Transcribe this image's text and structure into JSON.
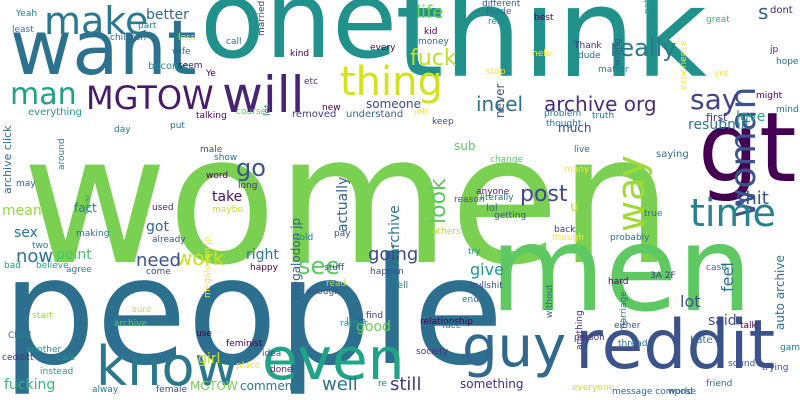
{
  "palette": {
    "dark_purple": "#440154",
    "indigo": "#414487",
    "blue": "#2a788e",
    "teal": "#22a884",
    "green": "#7ad151",
    "yellow": "#fde725",
    "background": "#ffffff"
  },
  "words": [
    {
      "text": "women",
      "color": "#7ad151"
    },
    {
      "text": "people",
      "color": "#2c6f8e"
    },
    {
      "text": "one",
      "color": "#21918c"
    },
    {
      "text": "think",
      "color": "#21918c"
    },
    {
      "text": "men",
      "color": "#5ec962"
    },
    {
      "text": "want",
      "color": "#2c728e"
    },
    {
      "text": "gt",
      "color": "#440154"
    },
    {
      "text": "reddit",
      "color": "#3b528b"
    },
    {
      "text": "guy",
      "color": "#31688e"
    },
    {
      "text": "even",
      "color": "#20a386"
    },
    {
      "text": "know",
      "color": "#2a788e"
    },
    {
      "text": "will",
      "color": "#482475"
    },
    {
      "text": "make",
      "color": "#2a788e"
    },
    {
      "text": "woman",
      "color": "#3b528b"
    },
    {
      "text": "time",
      "color": "#26828e"
    },
    {
      "text": "way",
      "color": "#a0da39"
    },
    {
      "text": "thing",
      "color": "#d2e21b"
    },
    {
      "text": "MGTOW",
      "color": "#481a6c"
    },
    {
      "text": "man",
      "color": "#1fa187"
    },
    {
      "text": "say",
      "color": "#414487"
    },
    {
      "text": "fuck",
      "color": "#bddf26"
    },
    {
      "text": "really",
      "color": "#2a788e"
    },
    {
      "text": "s",
      "color": "#355f8d"
    },
    {
      "text": "post",
      "color": "#3e4989"
    },
    {
      "text": "look",
      "color": "#5ec962"
    },
    {
      "text": "archive org",
      "color": "#472d7b"
    },
    {
      "text": "incel",
      "color": "#2c728e"
    },
    {
      "text": "life",
      "color": "#6ece58"
    },
    {
      "text": "become",
      "color": "#238a8d"
    },
    {
      "text": "better",
      "color": "#31688e"
    },
    {
      "text": "go",
      "color": "#3b528b"
    },
    {
      "text": "see",
      "color": "#5ec962"
    },
    {
      "text": "work",
      "color": "#c8e020"
    },
    {
      "text": "need",
      "color": "#3b528b"
    },
    {
      "text": "now",
      "color": "#2c728e"
    },
    {
      "text": "going",
      "color": "#3e4989"
    },
    {
      "text": "shit",
      "color": "#3b528b"
    },
    {
      "text": "still",
      "color": "#443983"
    },
    {
      "text": "well",
      "color": "#2c728e"
    },
    {
      "text": "comments",
      "color": "#2a788e"
    },
    {
      "text": "MGTOW",
      "color": "#7ad151"
    },
    {
      "text": "fucking",
      "color": "#35b779"
    },
    {
      "text": "something",
      "color": "#472d7b"
    },
    {
      "text": "good",
      "color": "#6ece58"
    },
    {
      "text": "megalodon jp",
      "color": "#355f8d"
    },
    {
      "text": "actually",
      "color": "#355f8d"
    },
    {
      "text": "web archive",
      "color": "#2a788e"
    },
    {
      "text": "feel",
      "color": "#2c728e"
    },
    {
      "text": "said",
      "color": "#3e4989"
    },
    {
      "text": "lot",
      "color": "#3b528b"
    },
    {
      "text": "give",
      "color": "#1f988b"
    },
    {
      "text": "love",
      "color": "#22a884"
    },
    {
      "text": "resubmit",
      "color": "#2a788e"
    },
    {
      "text": "auto archive",
      "color": "#2c728e"
    },
    {
      "text": "u",
      "color": "#bddf26"
    },
    {
      "text": "take",
      "color": "#471063"
    },
    {
      "text": "right",
      "color": "#2a788e"
    },
    {
      "text": "got",
      "color": "#31688e"
    },
    {
      "text": "sex",
      "color": "#2c728e"
    },
    {
      "text": "mean",
      "color": "#90d743"
    },
    {
      "text": "point",
      "color": "#4ac16d"
    },
    {
      "text": "girl",
      "color": "#c8e020"
    },
    {
      "text": "much",
      "color": "#3e4989"
    },
    {
      "text": "someone",
      "color": "#3e4989"
    },
    {
      "text": "never",
      "color": "#3b528b"
    },
    {
      "text": "fact",
      "color": "#2a788e"
    },
    {
      "text": "archive click",
      "color": "#31688e"
    },
    {
      "text": "everything",
      "color": "#1f988b"
    },
    {
      "text": "lol",
      "color": "#2c728e"
    },
    {
      "text": "removed",
      "color": "#443983"
    },
    {
      "text": "understand",
      "color": "#31688e"
    },
    {
      "text": "sub",
      "color": "#5ec962"
    },
    {
      "text": "saying",
      "color": "#2c728e"
    },
    {
      "text": "first",
      "color": "#46327e"
    },
    {
      "text": "hate",
      "color": "#2a788e"
    },
    {
      "text": "dont",
      "color": "#482475"
    },
    {
      "text": "etc",
      "color": "#472d7b"
    },
    {
      "text": "kind",
      "color": "#440154"
    },
    {
      "text": "Yeah",
      "color": "#26828e"
    },
    {
      "text": "least",
      "color": "#2a788e"
    },
    {
      "text": "made",
      "color": "#31688e"
    },
    {
      "text": "real",
      "color": "#26828e"
    },
    {
      "text": "best",
      "color": "#440154"
    },
    {
      "text": "great",
      "color": "#35b779"
    },
    {
      "text": "Thank",
      "color": "#482878"
    },
    {
      "text": "dude",
      "color": "#31688e"
    },
    {
      "text": "matter",
      "color": "#2a788e"
    },
    {
      "text": "money",
      "color": "#31688e"
    },
    {
      "text": "kid",
      "color": "#440154"
    },
    {
      "text": "Chad",
      "color": "#26828e"
    },
    {
      "text": "start",
      "color": "#9fda3a"
    },
    {
      "text": "another",
      "color": "#21918c"
    },
    {
      "text": "care",
      "color": "#1f988b"
    },
    {
      "text": "feminist",
      "color": "#440154"
    },
    {
      "text": "society",
      "color": "#46327e"
    },
    {
      "text": "idea",
      "color": "#3b528b"
    },
    {
      "text": "done",
      "color": "#482878"
    },
    {
      "text": "place",
      "color": "#fde725"
    },
    {
      "text": "relationship",
      "color": "#440154"
    },
    {
      "text": "find",
      "color": "#443983"
    },
    {
      "text": "little",
      "color": "#355f8d"
    },
    {
      "text": "enough",
      "color": "#3b528b"
    },
    {
      "text": "read",
      "color": "#bddf26"
    },
    {
      "text": "tell",
      "color": "#2c728e"
    },
    {
      "text": "happen",
      "color": "#3e4989"
    },
    {
      "text": "end",
      "color": "#26828e"
    },
    {
      "text": "anyone",
      "color": "#482475"
    },
    {
      "text": "reason",
      "color": "#3b528b"
    },
    {
      "text": "getting",
      "color": "#3b528b"
    },
    {
      "text": "back",
      "color": "#46327e"
    },
    {
      "text": "try",
      "color": "#21918c"
    },
    {
      "text": "probably",
      "color": "#2c728e"
    },
    {
      "text": "though",
      "color": "#fde725"
    },
    {
      "text": "true",
      "color": "#31688e"
    },
    {
      "text": "trying",
      "color": "#3e4989"
    },
    {
      "text": "friend",
      "color": "#2c728e"
    },
    {
      "text": "person",
      "color": "#46327e"
    },
    {
      "text": "either",
      "color": "#3b528b"
    },
    {
      "text": "use",
      "color": "#440154"
    },
    {
      "text": "come",
      "color": "#3e4989"
    },
    {
      "text": "agree",
      "color": "#26828e"
    },
    {
      "text": "believe",
      "color": "#1fa187"
    },
    {
      "text": "used",
      "color": "#482878"
    },
    {
      "text": "already",
      "color": "#3b528b"
    },
    {
      "text": "maybe",
      "color": "#d2e21b"
    },
    {
      "text": "word",
      "color": "#440154"
    },
    {
      "text": "long",
      "color": "#46327e"
    },
    {
      "text": "male",
      "color": "#3e4989"
    },
    {
      "text": "put",
      "color": "#2c728e"
    },
    {
      "text": "day",
      "color": "#2c728e"
    },
    {
      "text": "may",
      "color": "#31688e"
    },
    {
      "text": "year",
      "color": "#22a884"
    },
    {
      "text": "around",
      "color": "#26828e"
    },
    {
      "text": "bad",
      "color": "#1fa187"
    },
    {
      "text": "seem",
      "color": "#471063"
    },
    {
      "text": "wife",
      "color": "#31688e"
    },
    {
      "text": "part",
      "color": "#26828e"
    },
    {
      "text": "married",
      "color": "#46327e"
    },
    {
      "text": "problem",
      "color": "#2c728e"
    },
    {
      "text": "keep",
      "color": "#3e4989"
    },
    {
      "text": "job",
      "color": "#fde725"
    },
    {
      "text": "thought",
      "color": "#2c728e"
    },
    {
      "text": "many",
      "color": "#fde725"
    },
    {
      "text": "change",
      "color": "#5ec962"
    },
    {
      "text": "wrong",
      "color": "#3b528b"
    },
    {
      "text": "might",
      "color": "#440154"
    },
    {
      "text": "mind",
      "color": "#2c728e"
    },
    {
      "text": "yet",
      "color": "#fde725"
    },
    {
      "text": "hard",
      "color": "#440154"
    },
    {
      "text": "marriage",
      "color": "#2c728e"
    },
    {
      "text": "3A 2F",
      "color": "#46327e"
    },
    {
      "text": "anything",
      "color": "#482878"
    },
    {
      "text": "without",
      "color": "#355f8d"
    },
    {
      "text": "everyone",
      "color": "#d2e21b"
    },
    {
      "text": "alway",
      "color": "#2a788e"
    },
    {
      "text": "female",
      "color": "#3e4989"
    },
    {
      "text": "instead",
      "color": "#1fa187"
    },
    {
      "text": "sure",
      "color": "#d2e21b"
    },
    {
      "text": "rather",
      "color": "#1fa187"
    },
    {
      "text": "face",
      "color": "#2c728e"
    },
    {
      "text": "talk",
      "color": "#440154"
    },
    {
      "text": "thread",
      "color": "#2c728e"
    },
    {
      "text": "world",
      "color": "#3b528b"
    },
    {
      "text": "sound",
      "color": "#3b528b"
    },
    {
      "text": "stuff",
      "color": "#3e4989"
    },
    {
      "text": "happy",
      "color": "#440154"
    },
    {
      "text": "told",
      "color": "#26828e"
    },
    {
      "text": "pay",
      "color": "#3e4989"
    },
    {
      "text": "others",
      "color": "#b5de2b"
    },
    {
      "text": "bullshit",
      "color": "#3b528b"
    },
    {
      "text": "literally",
      "color": "#2c728e"
    },
    {
      "text": "game",
      "color": "#2a788e"
    },
    {
      "text": "jp",
      "color": "#481a6c"
    },
    {
      "text": "nothing",
      "color": "#1fa187"
    },
    {
      "text": "children",
      "color": "#31688e"
    },
    {
      "text": "call",
      "color": "#2a788e"
    },
    {
      "text": "different",
      "color": "#3b528b"
    },
    {
      "text": "every",
      "color": "#440154"
    },
    {
      "text": "help",
      "color": "#fde725"
    },
    {
      "text": "hope",
      "color": "#2c728e"
    },
    {
      "text": "experience",
      "color": "#fde725"
    },
    {
      "text": "Ye",
      "color": "#440154"
    },
    {
      "text": "talking",
      "color": "#440154"
    },
    {
      "text": "course",
      "color": "#5ec962"
    },
    {
      "text": "truth",
      "color": "#2c728e"
    },
    {
      "text": "let",
      "color": "#2c728e"
    },
    {
      "text": "show",
      "color": "#2c728e"
    },
    {
      "text": "two",
      "color": "#2a788e"
    },
    {
      "text": "making",
      "color": "#2c728e"
    },
    {
      "text": "cedditt",
      "color": "#46327e"
    },
    {
      "text": "archive",
      "color": "#5ec962"
    },
    {
      "text": "megalodon jp",
      "color": "#fde725"
    },
    {
      "text": "new",
      "color": "#440154"
    },
    {
      "text": "live",
      "color": "#2c728e"
    },
    {
      "text": "case",
      "color": "#2c728e"
    },
    {
      "text": "re",
      "color": "#2a788e"
    },
    {
      "text": "message compose",
      "color": "#31688e"
    },
    {
      "text": "less",
      "color": "#fde725"
    },
    {
      "text": "stop",
      "color": "#fde725"
    }
  ]
}
